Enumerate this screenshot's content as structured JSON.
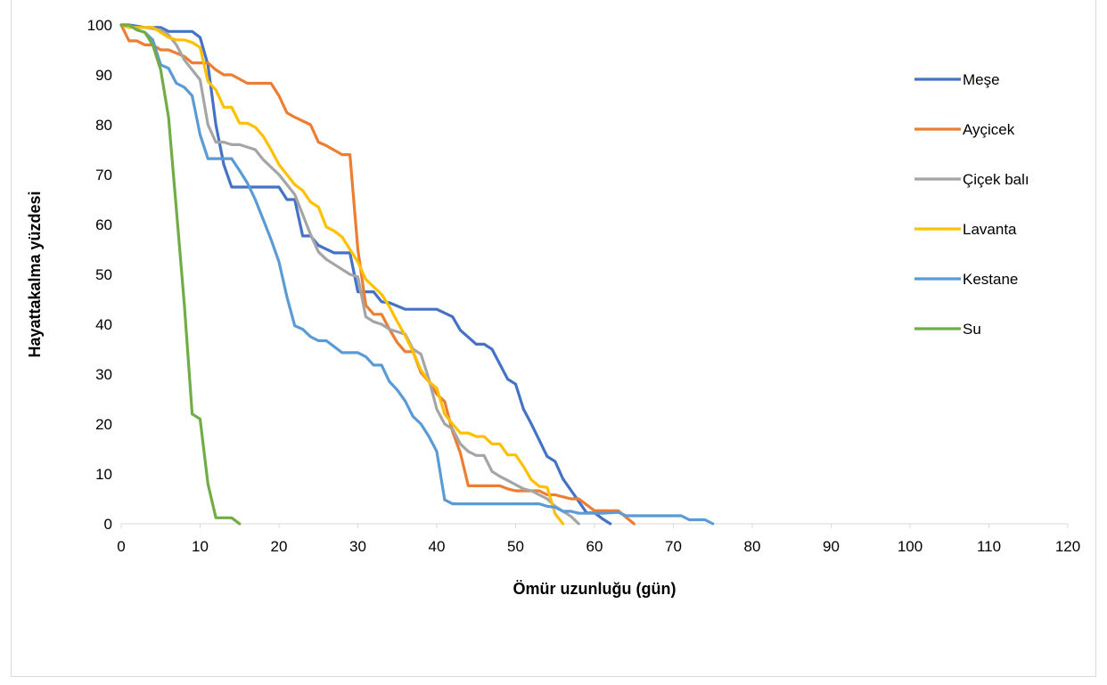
{
  "chart_data": {
    "type": "line",
    "title": "",
    "xlabel": "Ömür uzunluğu (gün)",
    "ylabel": "Hayattakalma yüzdesi",
    "xlim": [
      0,
      120
    ],
    "ylim": [
      0,
      100
    ],
    "xticks": [
      0,
      10,
      20,
      30,
      40,
      50,
      60,
      70,
      80,
      90,
      100,
      110,
      120
    ],
    "yticks": [
      0,
      10,
      20,
      30,
      40,
      50,
      60,
      70,
      80,
      90,
      100
    ],
    "grid": false,
    "legend_position": "right",
    "series": [
      {
        "name": "Meşe",
        "color": "#4472C4",
        "points": [
          [
            0,
            100
          ],
          [
            1,
            100
          ],
          [
            3,
            99.5
          ],
          [
            5,
            99.5
          ],
          [
            6,
            98.7
          ],
          [
            9,
            98.7
          ],
          [
            10,
            97.5
          ],
          [
            11,
            92
          ],
          [
            12,
            80
          ],
          [
            13,
            72
          ],
          [
            14,
            67.5
          ],
          [
            20,
            67.5
          ],
          [
            21,
            65
          ],
          [
            22,
            65
          ],
          [
            23,
            57.7
          ],
          [
            24,
            57.7
          ],
          [
            25,
            55.8
          ],
          [
            27,
            54.3
          ],
          [
            29,
            54.3
          ],
          [
            30,
            46.5
          ],
          [
            32,
            46.5
          ],
          [
            33,
            44.5
          ],
          [
            34,
            44.3
          ],
          [
            36,
            43
          ],
          [
            40,
            43
          ],
          [
            42,
            41.5
          ],
          [
            43,
            38.8
          ],
          [
            45,
            36
          ],
          [
            46,
            36
          ],
          [
            47,
            35
          ],
          [
            49,
            29
          ],
          [
            50,
            28
          ],
          [
            51,
            23
          ],
          [
            52,
            20
          ],
          [
            54,
            13.5
          ],
          [
            55,
            12.5
          ],
          [
            56,
            9
          ],
          [
            58,
            4.5
          ],
          [
            59,
            2.2
          ],
          [
            60,
            2.2
          ],
          [
            61,
            1
          ],
          [
            62,
            0
          ]
        ]
      },
      {
        "name": "Ayçicek",
        "color": "#ED7D31",
        "points": [
          [
            0,
            100
          ],
          [
            1,
            96.8
          ],
          [
            2,
            96.8
          ],
          [
            3,
            96
          ],
          [
            4,
            96
          ],
          [
            5,
            95
          ],
          [
            6,
            95
          ],
          [
            8,
            93.7
          ],
          [
            9,
            92.4
          ],
          [
            11,
            92.4
          ],
          [
            12,
            91
          ],
          [
            13,
            90
          ],
          [
            14,
            90
          ],
          [
            16,
            88.3
          ],
          [
            19,
            88.3
          ],
          [
            20,
            85.8
          ],
          [
            21,
            82.4
          ],
          [
            22,
            81.5
          ],
          [
            24,
            80
          ],
          [
            25,
            76.5
          ],
          [
            26,
            75.8
          ],
          [
            28,
            74
          ],
          [
            29,
            74
          ],
          [
            30,
            55
          ],
          [
            31,
            43.8
          ],
          [
            32,
            42
          ],
          [
            33,
            42
          ],
          [
            34,
            39
          ],
          [
            35,
            36.3
          ],
          [
            36,
            34.5
          ],
          [
            37,
            34.5
          ],
          [
            38,
            30.3
          ],
          [
            39,
            28.5
          ],
          [
            40,
            26
          ],
          [
            41,
            24.5
          ],
          [
            42,
            18.5
          ],
          [
            43,
            14.2
          ],
          [
            44,
            7.6
          ],
          [
            48,
            7.6
          ],
          [
            49,
            7
          ],
          [
            50,
            6.6
          ],
          [
            53,
            6.6
          ],
          [
            54,
            5.8
          ],
          [
            55,
            5.8
          ],
          [
            57,
            5
          ],
          [
            58,
            5
          ],
          [
            60,
            2.6
          ],
          [
            63,
            2.6
          ],
          [
            65,
            0
          ]
        ]
      },
      {
        "name": "Çiçek balı",
        "color": "#A5A5A5",
        "points": [
          [
            0,
            100
          ],
          [
            2,
            99.5
          ],
          [
            3,
            99.5
          ],
          [
            5,
            99
          ],
          [
            6,
            98
          ],
          [
            7,
            96
          ],
          [
            8,
            93
          ],
          [
            9,
            91
          ],
          [
            10,
            89
          ],
          [
            11,
            80
          ],
          [
            12,
            76.5
          ],
          [
            13,
            76.5
          ],
          [
            14,
            76
          ],
          [
            15,
            76
          ],
          [
            17,
            75
          ],
          [
            18,
            73
          ],
          [
            19,
            71.5
          ],
          [
            20,
            70
          ],
          [
            21,
            68
          ],
          [
            22,
            66
          ],
          [
            23,
            62
          ],
          [
            24,
            58
          ],
          [
            25,
            54.5
          ],
          [
            26,
            53
          ],
          [
            27,
            52
          ],
          [
            29,
            50
          ],
          [
            30,
            49.5
          ],
          [
            31,
            41.5
          ],
          [
            32,
            40.5
          ],
          [
            33,
            40
          ],
          [
            34,
            39
          ],
          [
            36,
            38
          ],
          [
            37,
            35
          ],
          [
            38,
            34
          ],
          [
            39,
            29
          ],
          [
            40,
            23
          ],
          [
            41,
            20
          ],
          [
            42,
            19
          ],
          [
            43,
            16
          ],
          [
            44,
            14.5
          ],
          [
            45,
            13.7
          ],
          [
            46,
            13.7
          ],
          [
            47,
            10.5
          ],
          [
            48,
            9.5
          ],
          [
            49,
            8.7
          ],
          [
            51,
            7
          ],
          [
            52,
            6.6
          ],
          [
            54,
            5
          ],
          [
            55,
            3.5
          ],
          [
            56,
            2.5
          ],
          [
            57,
            1.5
          ],
          [
            58,
            0
          ]
        ]
      },
      {
        "name": "Lavanta",
        "color": "#FFC000",
        "points": [
          [
            0,
            100
          ],
          [
            1,
            99.5
          ],
          [
            3,
            99.5
          ],
          [
            4,
            99.5
          ],
          [
            5,
            98.5
          ],
          [
            6,
            97.5
          ],
          [
            7,
            97
          ],
          [
            8,
            97
          ],
          [
            9,
            96.5
          ],
          [
            10,
            95.5
          ],
          [
            11,
            88.7
          ],
          [
            12,
            87
          ],
          [
            13,
            83.5
          ],
          [
            14,
            83.5
          ],
          [
            15,
            80.3
          ],
          [
            16,
            80.3
          ],
          [
            17,
            79.5
          ],
          [
            18,
            77.7
          ],
          [
            19,
            75
          ],
          [
            20,
            72
          ],
          [
            21,
            70
          ],
          [
            22,
            68
          ],
          [
            23,
            66.8
          ],
          [
            24,
            64.5
          ],
          [
            25,
            63.5
          ],
          [
            26,
            59.5
          ],
          [
            27,
            58.7
          ],
          [
            28,
            57.5
          ],
          [
            29,
            55
          ],
          [
            30,
            52.5
          ],
          [
            31,
            49
          ],
          [
            32,
            47.5
          ],
          [
            33,
            46
          ],
          [
            34,
            43.5
          ],
          [
            35,
            40.5
          ],
          [
            36,
            37.7
          ],
          [
            37,
            34.5
          ],
          [
            38,
            30.8
          ],
          [
            39,
            28.5
          ],
          [
            40,
            27.2
          ],
          [
            41,
            22
          ],
          [
            42,
            20
          ],
          [
            43,
            18.2
          ],
          [
            44,
            18.2
          ],
          [
            45,
            17.5
          ],
          [
            46,
            17.5
          ],
          [
            47,
            16
          ],
          [
            48,
            16
          ],
          [
            49,
            13.8
          ],
          [
            50,
            13.8
          ],
          [
            51,
            11.5
          ],
          [
            52,
            8.8
          ],
          [
            53,
            7.5
          ],
          [
            54,
            7.3
          ],
          [
            55,
            2
          ],
          [
            56,
            0
          ]
        ]
      },
      {
        "name": "Kestane",
        "color": "#5B9BD5",
        "points": [
          [
            0,
            100
          ],
          [
            1,
            100
          ],
          [
            2,
            99
          ],
          [
            3,
            98.5
          ],
          [
            4,
            97
          ],
          [
            5,
            92
          ],
          [
            6,
            91.3
          ],
          [
            7,
            88.3
          ],
          [
            8,
            87.5
          ],
          [
            9,
            85.8
          ],
          [
            10,
            78
          ],
          [
            11,
            73.2
          ],
          [
            14,
            73.2
          ],
          [
            15,
            70.8
          ],
          [
            16,
            68.3
          ],
          [
            17,
            65
          ],
          [
            18,
            61
          ],
          [
            19,
            57
          ],
          [
            20,
            52.5
          ],
          [
            21,
            45.5
          ],
          [
            22,
            39.7
          ],
          [
            23,
            39
          ],
          [
            24,
            37.5
          ],
          [
            25,
            36.7
          ],
          [
            26,
            36.7
          ],
          [
            27,
            35.5
          ],
          [
            28,
            34.3
          ],
          [
            30,
            34.3
          ],
          [
            31,
            33.5
          ],
          [
            32,
            31.8
          ],
          [
            33,
            31.8
          ],
          [
            34,
            28.5
          ],
          [
            35,
            26.8
          ],
          [
            36,
            24.6
          ],
          [
            37,
            21.5
          ],
          [
            38,
            20
          ],
          [
            39,
            17.5
          ],
          [
            40,
            14.5
          ],
          [
            41,
            4.8
          ],
          [
            42,
            4
          ],
          [
            53,
            4
          ],
          [
            54,
            3.5
          ],
          [
            55,
            3.3
          ],
          [
            56,
            2.5
          ],
          [
            57,
            2.5
          ],
          [
            58,
            2.1
          ],
          [
            61,
            2.1
          ],
          [
            63,
            2.3
          ],
          [
            64,
            1.6
          ],
          [
            71,
            1.6
          ],
          [
            72,
            0.8
          ],
          [
            74,
            0.8
          ],
          [
            75,
            0
          ]
        ]
      },
      {
        "name": "Su",
        "color": "#70AD47",
        "points": [
          [
            0,
            100
          ],
          [
            1,
            100
          ],
          [
            2,
            99
          ],
          [
            3,
            98.5
          ],
          [
            4,
            96
          ],
          [
            5,
            91
          ],
          [
            6,
            81.5
          ],
          [
            7,
            63
          ],
          [
            8,
            44
          ],
          [
            9,
            22
          ],
          [
            10,
            21
          ],
          [
            11,
            8
          ],
          [
            12,
            1.2
          ],
          [
            14,
            1.2
          ],
          [
            15,
            0
          ]
        ]
      }
    ]
  }
}
